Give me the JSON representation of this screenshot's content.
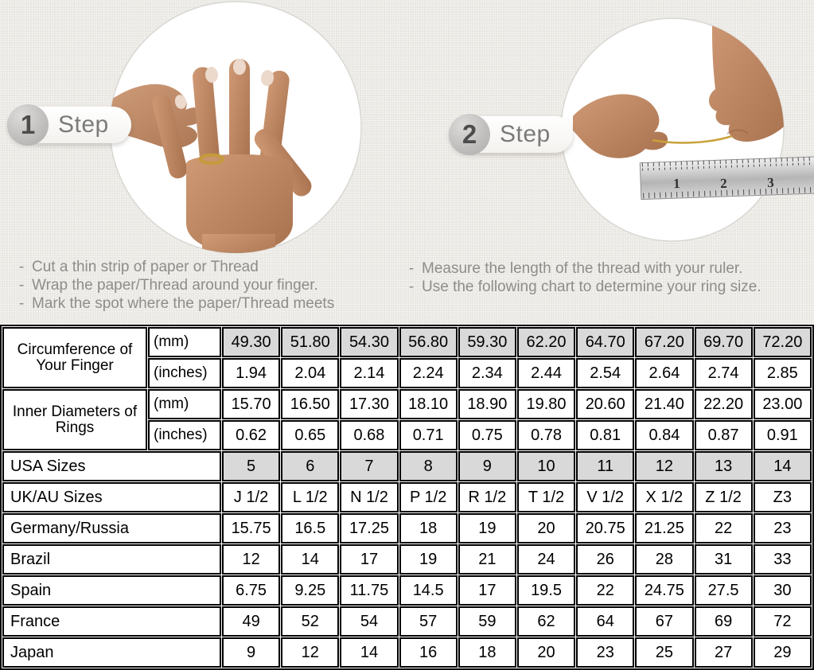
{
  "colors": {
    "top_background": "#eae8e3",
    "shaded_cell": "#d9d9d9",
    "table_border": "#000000",
    "step_text": "#7b7b79",
    "instruction_text": "#8e8d8b",
    "gold_thread": "#c8a13b"
  },
  "steps": [
    {
      "number": "1",
      "label": "Step",
      "instructions": [
        "Cut a thin strip of paper or Thread",
        "Wrap the paper/Thread around your finger.",
        "Mark the spot where the paper/Thread meets"
      ]
    },
    {
      "number": "2",
      "label": "Step",
      "instructions": [
        "Measure the length of the thread with your ruler.",
        "Use the following chart to determine your ring size."
      ]
    }
  ],
  "chart_data": {
    "type": "table",
    "columns": 10,
    "row_groups": [
      {
        "label": "Circumference of Your Finger",
        "sub_rows": [
          {
            "unit": "(mm)",
            "shaded": true,
            "values": [
              "49.30",
              "51.80",
              "54.30",
              "56.80",
              "59.30",
              "62.20",
              "64.70",
              "67.20",
              "69.70",
              "72.20"
            ]
          },
          {
            "unit": "(inches)",
            "shaded": false,
            "values": [
              "1.94",
              "2.04",
              "2.14",
              "2.24",
              "2.34",
              "2.44",
              "2.54",
              "2.64",
              "2.74",
              "2.85"
            ]
          }
        ]
      },
      {
        "label": "Inner Diameters of Rings",
        "sub_rows": [
          {
            "unit": "(mm)",
            "shaded": false,
            "values": [
              "15.70",
              "16.50",
              "17.30",
              "18.10",
              "18.90",
              "19.80",
              "20.60",
              "21.40",
              "22.20",
              "23.00"
            ]
          },
          {
            "unit": "(inches)",
            "shaded": false,
            "values": [
              "0.62",
              "0.65",
              "0.68",
              "0.71",
              "0.75",
              "0.78",
              "0.81",
              "0.84",
              "0.87",
              "0.91"
            ]
          }
        ]
      }
    ],
    "rows": [
      {
        "label": "USA Sizes",
        "shaded": true,
        "values": [
          "5",
          "6",
          "7",
          "8",
          "9",
          "10",
          "11",
          "12",
          "13",
          "14"
        ]
      },
      {
        "label": "UK/AU Sizes",
        "shaded": false,
        "values": [
          "J 1/2",
          "L 1/2",
          "N 1/2",
          "P 1/2",
          "R 1/2",
          "T 1/2",
          "V 1/2",
          "X 1/2",
          "Z 1/2",
          "Z3"
        ]
      },
      {
        "label": "Germany/Russia",
        "shaded": false,
        "values": [
          "15.75",
          "16.5",
          "17.25",
          "18",
          "19",
          "20",
          "20.75",
          "21.25",
          "22",
          "23"
        ]
      },
      {
        "label": "Brazil",
        "shaded": false,
        "values": [
          "12",
          "14",
          "17",
          "19",
          "21",
          "24",
          "26",
          "28",
          "31",
          "33"
        ]
      },
      {
        "label": "Spain",
        "shaded": false,
        "values": [
          "6.75",
          "9.25",
          "11.75",
          "14.5",
          "17",
          "19.5",
          "22",
          "24.75",
          "27.5",
          "30"
        ]
      },
      {
        "label": "France",
        "shaded": false,
        "values": [
          "49",
          "52",
          "54",
          "57",
          "59",
          "62",
          "64",
          "67",
          "69",
          "72"
        ]
      },
      {
        "label": "Japan",
        "shaded": false,
        "values": [
          "9",
          "12",
          "14",
          "16",
          "18",
          "20",
          "23",
          "25",
          "27",
          "29"
        ]
      }
    ]
  }
}
